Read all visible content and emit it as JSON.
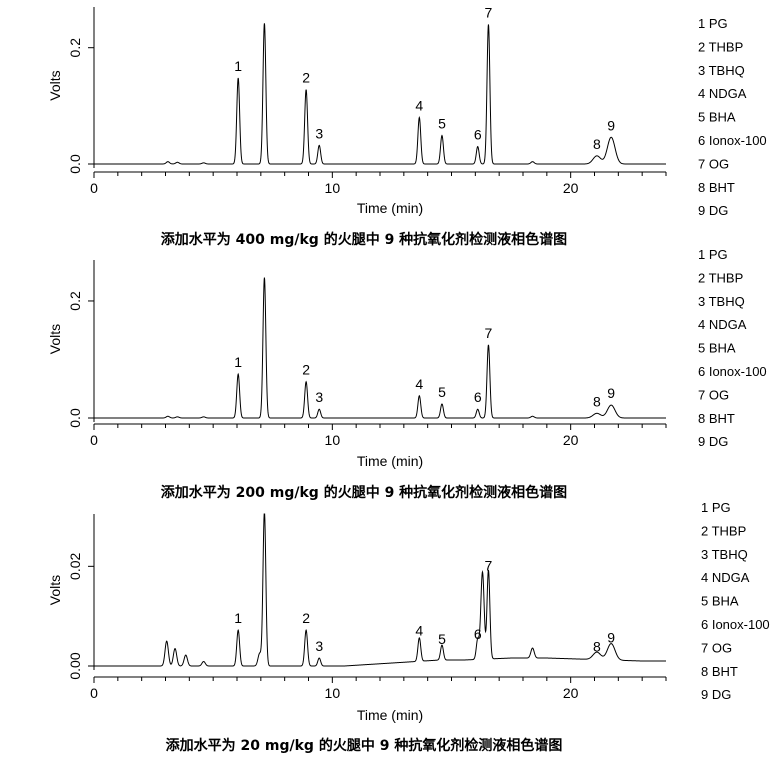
{
  "chart_data": [
    {
      "type": "line",
      "caption": "添加水平为 400 mg/kg 的火腿中 9 种抗氧化剂检测液相色谱图",
      "xlabel": "Time (min)",
      "ylabel": "Volts",
      "xlim": [
        0,
        24
      ],
      "ylim": [
        -0.01,
        0.27
      ],
      "x_ticks": [
        "0",
        "10",
        "20"
      ],
      "x_tick_values": [
        0,
        10,
        20
      ],
      "y_ticks": [
        "0.0",
        "0.2"
      ],
      "y_tick_values": [
        0.0,
        0.2
      ],
      "baseline": 0.0,
      "peaks": [
        {
          "label": "1",
          "x": 6.05,
          "y": 0.148
        },
        {
          "label": "",
          "x": 7.15,
          "y": 0.242
        },
        {
          "label": "2",
          "x": 8.9,
          "y": 0.128
        },
        {
          "label": "3",
          "x": 9.45,
          "y": 0.032
        },
        {
          "label": "4",
          "x": 13.65,
          "y": 0.08
        },
        {
          "label": "5",
          "x": 14.6,
          "y": 0.049
        },
        {
          "label": "6",
          "x": 16.1,
          "y": 0.03
        },
        {
          "label": "7",
          "x": 16.55,
          "y": 0.24
        },
        {
          "label": "8",
          "x": 21.1,
          "y": 0.014
        },
        {
          "label": "9",
          "x": 21.7,
          "y": 0.046
        }
      ],
      "minor_peaks": [
        {
          "x": 3.1,
          "y": 0.004
        },
        {
          "x": 3.5,
          "y": 0.003
        },
        {
          "x": 4.6,
          "y": 0.002
        },
        {
          "x": 18.4,
          "y": 0.004
        }
      ]
    },
    {
      "type": "line",
      "caption": "添加水平为 200 mg/kg 的火腿中 9 种抗氧化剂检测液相色谱图",
      "xlabel": "Time (min)",
      "ylabel": "Volts",
      "xlim": [
        0,
        24
      ],
      "ylim": [
        -0.01,
        0.27
      ],
      "x_ticks": [
        "0",
        "10",
        "20"
      ],
      "x_tick_values": [
        0,
        10,
        20
      ],
      "y_ticks": [
        "0.0",
        "0.2"
      ],
      "y_tick_values": [
        0.0,
        0.2
      ],
      "baseline": 0.0,
      "peaks": [
        {
          "label": "1",
          "x": 6.05,
          "y": 0.075
        },
        {
          "label": "",
          "x": 7.15,
          "y": 0.24
        },
        {
          "label": "2",
          "x": 8.9,
          "y": 0.062
        },
        {
          "label": "3",
          "x": 9.45,
          "y": 0.015
        },
        {
          "label": "4",
          "x": 13.65,
          "y": 0.038
        },
        {
          "label": "5",
          "x": 14.6,
          "y": 0.024
        },
        {
          "label": "6",
          "x": 16.1,
          "y": 0.015
        },
        {
          "label": "7",
          "x": 16.55,
          "y": 0.125
        },
        {
          "label": "8",
          "x": 21.1,
          "y": 0.008
        },
        {
          "label": "9",
          "x": 21.7,
          "y": 0.022
        }
      ],
      "minor_peaks": [
        {
          "x": 3.1,
          "y": 0.003
        },
        {
          "x": 3.5,
          "y": 0.002
        },
        {
          "x": 4.6,
          "y": 0.002
        },
        {
          "x": 18.4,
          "y": 0.003
        }
      ]
    },
    {
      "type": "line",
      "caption": "添加水平为 20 mg/kg 的火腿中 9 种抗氧化剂检测液相色谱图",
      "xlabel": "Time (min)",
      "ylabel": "Volts",
      "xlim": [
        0,
        24
      ],
      "ylim": [
        -0.001,
        0.0305
      ],
      "x_ticks": [
        "0",
        "10",
        "20"
      ],
      "x_tick_values": [
        0,
        10,
        20
      ],
      "y_ticks": [
        "0.00",
        "0.02"
      ],
      "y_tick_values": [
        0.0,
        0.02
      ],
      "baseline": 0.0,
      "peaks": [
        {
          "label": "1",
          "x": 6.05,
          "y": 0.0072
        },
        {
          "label": "",
          "x": 7.15,
          "y": 0.031
        },
        {
          "label": "2",
          "x": 8.9,
          "y": 0.0072
        },
        {
          "label": "3",
          "x": 9.45,
          "y": 0.0016
        },
        {
          "label": "4",
          "x": 13.65,
          "y": 0.0047
        },
        {
          "label": "5",
          "x": 14.6,
          "y": 0.003
        },
        {
          "label": "6",
          "x": 16.1,
          "y": 0.004
        },
        {
          "label": "7",
          "x": 16.55,
          "y": 0.0178
        },
        {
          "label": "8",
          "x": 21.1,
          "y": 0.0015
        },
        {
          "label": "9",
          "x": 21.7,
          "y": 0.0033
        }
      ],
      "minor_peaks": [
        {
          "x": 3.05,
          "y": 0.005
        },
        {
          "x": 3.4,
          "y": 0.0035
        },
        {
          "x": 3.85,
          "y": 0.0022
        },
        {
          "x": 4.6,
          "y": 0.0009
        },
        {
          "x": 6.95,
          "y": 0.0025
        },
        {
          "x": 16.3,
          "y": 0.0175
        },
        {
          "x": 18.4,
          "y": 0.002
        }
      ]
    }
  ],
  "legend": {
    "entries": [
      "1 PG",
      "2 THBP",
      "3 TBHQ",
      "4 NDGA",
      "5 BHA",
      "6 Ionox-100",
      "7 OG",
      "8 BHT",
      "9 DG"
    ]
  }
}
